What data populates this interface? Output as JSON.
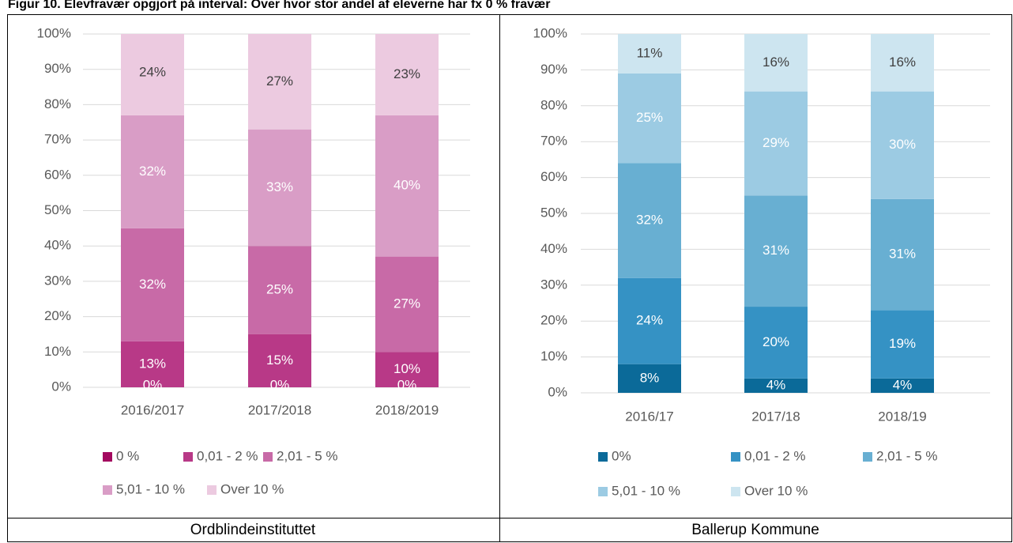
{
  "title": "Figur 10. Elevfravær opgjort på interval: Over hvor stor andel af eleverne har fx 0 % fravær",
  "chart_data": [
    {
      "type": "bar",
      "stacked": true,
      "caption": "Ordblindeinstituttet",
      "categories": [
        "2016/2017",
        "2017/2018",
        "2018/2019"
      ],
      "ylim": [
        0,
        100
      ],
      "yticks": [
        {
          "value": 0,
          "label": "0%"
        },
        {
          "value": 10,
          "label": "10%"
        },
        {
          "value": 20,
          "label": "20%"
        },
        {
          "value": 30,
          "label": "30%"
        },
        {
          "value": 40,
          "label": "40%"
        },
        {
          "value": 50,
          "label": "50%"
        },
        {
          "value": 60,
          "label": "60%"
        },
        {
          "value": 70,
          "label": "70%"
        },
        {
          "value": 80,
          "label": "80%"
        },
        {
          "value": 90,
          "label": "90%"
        },
        {
          "value": 100,
          "label": "100%"
        }
      ],
      "grid": true,
      "series": [
        {
          "name": "0 %",
          "color": "#a3095f",
          "values": [
            0,
            0,
            0
          ],
          "value_labels": [
            "0%",
            "0%",
            "0%"
          ]
        },
        {
          "name": "0,01 - 2 %",
          "color": "#b83987",
          "values": [
            13,
            15,
            10
          ],
          "value_labels": [
            "13%",
            "15%",
            "10%"
          ]
        },
        {
          "name": "2,01 - 5 %",
          "color": "#c86aa7",
          "values": [
            32,
            25,
            27
          ],
          "value_labels": [
            "32%",
            "25%",
            "27%"
          ]
        },
        {
          "name": "5,01 - 10 %",
          "color": "#d99dc6",
          "values": [
            32,
            33,
            40
          ],
          "value_labels": [
            "32%",
            "33%",
            "40%"
          ]
        },
        {
          "name": "Over 10 %",
          "color": "#eccae0",
          "values": [
            24,
            27,
            23
          ],
          "value_labels": [
            "24%",
            "27%",
            "23%"
          ]
        }
      ]
    },
    {
      "type": "bar",
      "stacked": true,
      "caption": "Ballerup Kommune",
      "categories": [
        "2016/17",
        "2017/18",
        "2018/19"
      ],
      "ylim": [
        0,
        100
      ],
      "yticks": [
        {
          "value": 0,
          "label": "0%"
        },
        {
          "value": 10,
          "label": "10%"
        },
        {
          "value": 20,
          "label": "20%"
        },
        {
          "value": 30,
          "label": "30%"
        },
        {
          "value": 40,
          "label": "40%"
        },
        {
          "value": 50,
          "label": "50%"
        },
        {
          "value": 60,
          "label": "60%"
        },
        {
          "value": 70,
          "label": "70%"
        },
        {
          "value": 80,
          "label": "80%"
        },
        {
          "value": 90,
          "label": "90%"
        },
        {
          "value": 100,
          "label": "100%"
        }
      ],
      "grid": true,
      "series": [
        {
          "name": "0%",
          "color": "#0b6a99",
          "values": [
            8,
            4,
            4
          ],
          "value_labels": [
            "8%",
            "4%",
            "4%"
          ]
        },
        {
          "name": "0,01 - 2 %",
          "color": "#3592c4",
          "values": [
            24,
            20,
            19
          ],
          "value_labels": [
            "24%",
            "20%",
            "19%"
          ]
        },
        {
          "name": "2,01 - 5  %",
          "color": "#68afd2",
          "values": [
            32,
            31,
            31
          ],
          "value_labels": [
            "32%",
            "31%",
            "31%"
          ]
        },
        {
          "name": "5,01 - 10  %",
          "color": "#9ccbe3",
          "values": [
            25,
            29,
            30
          ],
          "value_labels": [
            "25%",
            "29%",
            "30%"
          ]
        },
        {
          "name": "Over 10 %",
          "color": "#cde5f0",
          "values": [
            11,
            16,
            16
          ],
          "value_labels": [
            "11%",
            "16%",
            "16%"
          ]
        }
      ]
    }
  ]
}
